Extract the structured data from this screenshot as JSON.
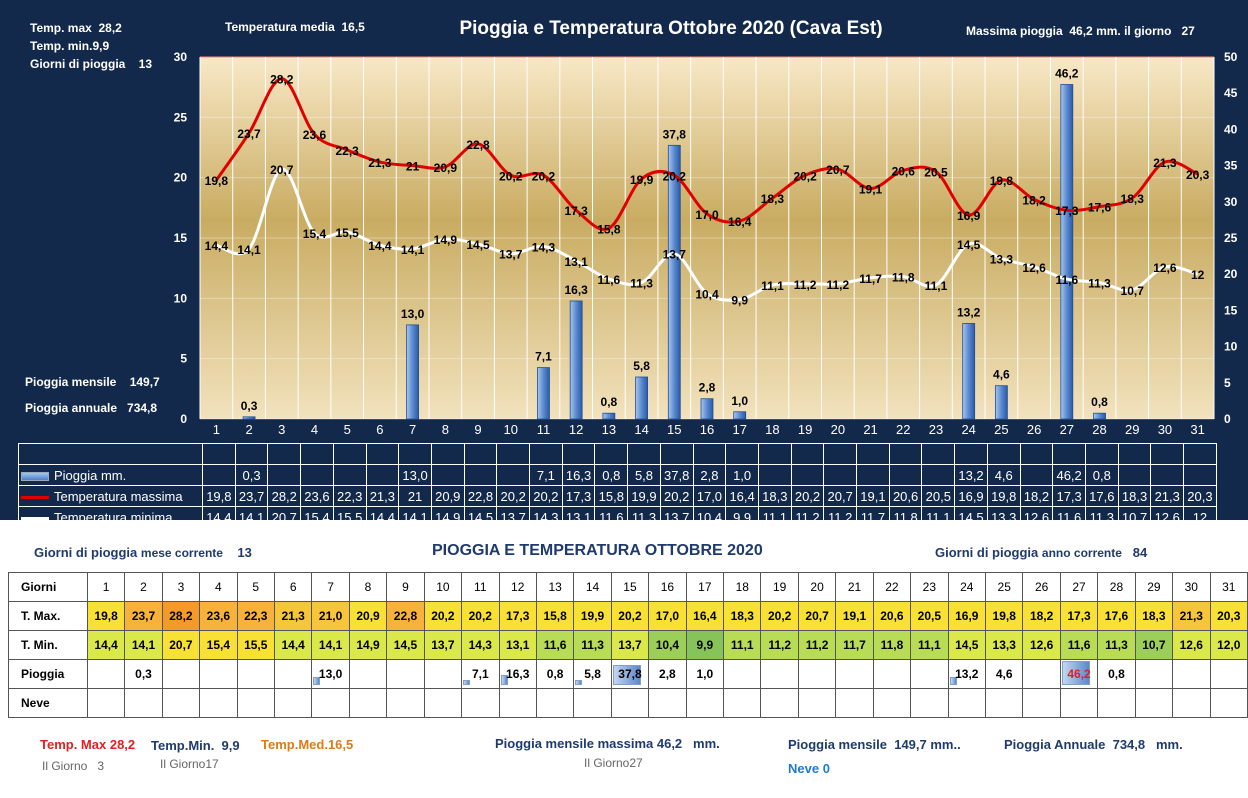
{
  "title": "Pioggia e Temperatura Ottobre 2020 (Cava Est)",
  "top_info": {
    "tmax_label": "Temp. max",
    "tmax_value": "28,2",
    "tmin_label": "Temp.  min.",
    "tmin_value": "9,9",
    "rain_days_label": "Giorni  di pioggia",
    "rain_days_value": "13",
    "tmed_label": "Temperatura media",
    "tmed_value": "16,5",
    "max_rain_label": "Massima pioggia",
    "max_rain_value": "46,2 mm.",
    "max_rain_day_label": "il giorno",
    "max_rain_day": "27",
    "monthly_label": "Pioggia mensile",
    "monthly_value": "149,7",
    "annual_label": "Pioggia annuale",
    "annual_value": "734,8"
  },
  "chart_data": {
    "type": "bar+line",
    "title": "Pioggia e Temperatura Ottobre 2020 (Cava Est)",
    "days": [
      "1",
      "2",
      "3",
      "4",
      "5",
      "6",
      "7",
      "8",
      "9",
      "10",
      "11",
      "12",
      "13",
      "14",
      "15",
      "16",
      "17",
      "18",
      "19",
      "20",
      "21",
      "22",
      "23",
      "24",
      "25",
      "26",
      "27",
      "28",
      "29",
      "30",
      "31"
    ],
    "y_left": {
      "min": 0,
      "max": 30,
      "ticks": [
        0,
        5,
        10,
        15,
        20,
        25,
        30
      ]
    },
    "y_right": {
      "min": 0,
      "max": 50,
      "ticks": [
        0,
        5,
        10,
        15,
        20,
        25,
        30,
        35,
        40,
        45,
        50
      ]
    },
    "series": [
      {
        "name": "Pioggia mm.",
        "type": "bar",
        "axis": "right",
        "color": "#4a7fcc",
        "values": [
          null,
          0.3,
          null,
          null,
          null,
          null,
          13.0,
          null,
          null,
          null,
          7.1,
          16.3,
          0.8,
          5.8,
          37.8,
          2.8,
          1.0,
          null,
          null,
          null,
          null,
          null,
          null,
          13.2,
          4.6,
          null,
          46.2,
          0.8,
          null,
          null,
          null
        ],
        "labels": [
          "",
          "0,3",
          "",
          "",
          "",
          "",
          "13,0",
          "",
          "",
          "",
          "7,1",
          "16,3",
          "0,8",
          "5,8",
          "37,8",
          "2,8",
          "1,0",
          "",
          "",
          "",
          "",
          "",
          "",
          "13,2",
          "4,6",
          "",
          "46,2",
          "0,8",
          "",
          "",
          ""
        ]
      },
      {
        "name": "Temperatura massima",
        "type": "line",
        "axis": "left",
        "color": "#e00000",
        "values": [
          19.8,
          23.7,
          28.2,
          23.6,
          22.3,
          21.3,
          21,
          20.9,
          22.8,
          20.2,
          20.2,
          17.3,
          15.8,
          19.9,
          20.2,
          17.0,
          16.4,
          18.3,
          20.2,
          20.7,
          19.1,
          20.6,
          20.5,
          16.9,
          19.8,
          18.2,
          17.3,
          17.6,
          18.3,
          21.3,
          20.3
        ],
        "labels": [
          "19,8",
          "23,7",
          "28,2",
          "23,6",
          "22,3",
          "21,3",
          "21",
          "20,9",
          "22,8",
          "20,2",
          "20,2",
          "17,3",
          "15,8",
          "19,9",
          "20,2",
          "17,0",
          "16,4",
          "18,3",
          "20,2",
          "20,7",
          "19,1",
          "20,6",
          "20,5",
          "16,9",
          "19,8",
          "18,2",
          "17,3",
          "17,6",
          "18,3",
          "21,3",
          "20,3"
        ]
      },
      {
        "name": "Temperatura minima",
        "type": "line",
        "axis": "left",
        "color": "#ffffff",
        "values": [
          14.4,
          14.1,
          20.7,
          15.4,
          15.5,
          14.4,
          14.1,
          14.9,
          14.5,
          13.7,
          14.3,
          13.1,
          11.6,
          11.3,
          13.7,
          10.4,
          9.9,
          11.1,
          11.2,
          11.2,
          11.7,
          11.8,
          11.1,
          14.5,
          13.3,
          12.6,
          11.6,
          11.3,
          10.7,
          12.6,
          12
        ],
        "labels": [
          "14,4",
          "14,1",
          "20,7",
          "15,4",
          "15,5",
          "14,4",
          "14,1",
          "14,9",
          "14,5",
          "13,7",
          "14,3",
          "13,1",
          "11,6",
          "11,3",
          "13,7",
          "10,4",
          "9,9",
          "11,1",
          "11,2",
          "11,2",
          "11,7",
          "11,8",
          "11,1",
          "14,5",
          "13,3",
          "12,6",
          "11,6",
          "11,3",
          "10,7",
          "12,6",
          "12"
        ]
      }
    ]
  },
  "colors": {
    "background": "#13294b",
    "tmax_line": "#e00000",
    "tmin_line": "#ffffff",
    "bar": "#4a7fcc",
    "navy_text": "#1f3a6e",
    "orange_text": "#e07b10",
    "red_text": "#e02020",
    "blue_text": "#1e7bd0"
  },
  "bottom": {
    "rain_days_month_label": "Giorni di pioggia",
    "rain_days_month_label2": "mese corrente",
    "rain_days_month_value": "13",
    "title": "PIOGGIA E TEMPERATURA OTTOBRE 2020",
    "rain_days_year_label": "Giorni di pioggia",
    "rain_days_year_label2": "anno corrente",
    "rain_days_year_value": "84",
    "row_labels": {
      "days": "Giorni",
      "tmax": "T. Max.",
      "tmin": "T. Min.",
      "rain": "Pioggia",
      "snow": "Neve"
    },
    "tmax_table": [
      "19,8",
      "23,7",
      "28,2",
      "23,6",
      "22,3",
      "21,3",
      "21,0",
      "20,9",
      "22,8",
      "20,2",
      "20,2",
      "17,3",
      "15,8",
      "19,9",
      "20,2",
      "17,0",
      "16,4",
      "18,3",
      "20,2",
      "20,7",
      "19,1",
      "20,6",
      "20,5",
      "16,9",
      "19,8",
      "18,2",
      "17,3",
      "17,6",
      "18,3",
      "21,3",
      "20,3"
    ],
    "tmin_table": [
      "14,4",
      "14,1",
      "20,7",
      "15,4",
      "15,5",
      "14,4",
      "14,1",
      "14,9",
      "14,5",
      "13,7",
      "14,3",
      "13,1",
      "11,6",
      "11,3",
      "13,7",
      "10,4",
      "9,9",
      "11,1",
      "11,2",
      "11,2",
      "11,7",
      "11,8",
      "11,1",
      "14,5",
      "13,3",
      "12,6",
      "11,6",
      "11,3",
      "10,7",
      "12,6",
      "12,0"
    ],
    "rain_table": [
      "",
      "0,3",
      "",
      "",
      "",
      "",
      "13,0",
      "",
      "",
      "",
      "7,1",
      "16,3",
      "0,8",
      "5,8",
      "37,8",
      "2,8",
      "1,0",
      "",
      "",
      "",
      "",
      "",
      "",
      "13,2",
      "4,6",
      "",
      "46,2",
      "0,8",
      "",
      "",
      ""
    ],
    "footer": {
      "tmax_label": "Temp. Max",
      "tmax_value": "28,2",
      "tmax_day_label": "Il Giorno",
      "tmax_day": "3",
      "tmin_label": "Temp.Min.",
      "tmin_value": "9,9",
      "tmin_day_label": "Il Giorno",
      "tmin_day": "17",
      "tmed_label": "Temp.Med.",
      "tmed_value": "16,5",
      "max_rain_label": "Pioggia mensile massima",
      "max_rain_value": "46,2",
      "max_rain_unit": "mm.",
      "max_rain_day_label": "Il Giorno",
      "max_rain_day": "27",
      "monthly_label": "Pioggia mensile",
      "monthly_value": "149,7 mm..",
      "annual_label": "Pioggia Annuale",
      "annual_value": "734,8",
      "annual_unit": "mm.",
      "snow_label": "Neve",
      "snow_value": "0"
    }
  }
}
